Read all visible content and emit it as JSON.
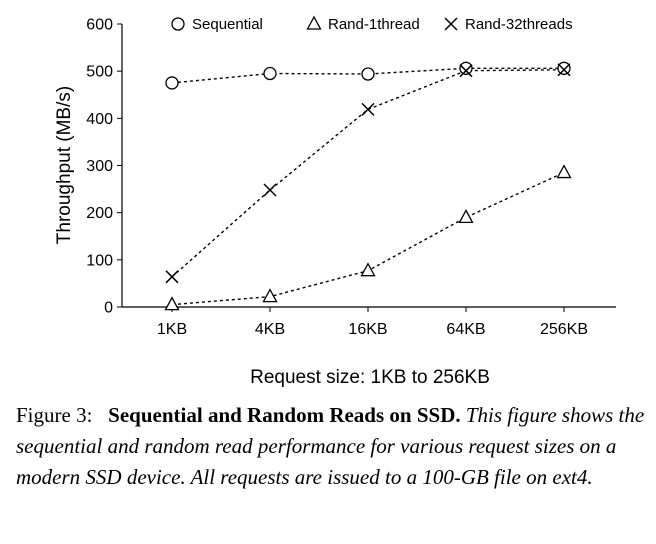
{
  "chart_data": {
    "type": "line",
    "categories": [
      "1KB",
      "4KB",
      "16KB",
      "64KB",
      "256KB"
    ],
    "series": [
      {
        "name": "Sequential",
        "marker": "circle",
        "values": [
          475,
          495,
          494,
          506,
          506
        ]
      },
      {
        "name": "Rand-1thread",
        "marker": "triangle",
        "values": [
          5,
          22,
          77,
          190,
          285
        ]
      },
      {
        "name": "Rand-32threads",
        "marker": "x",
        "values": [
          64,
          248,
          419,
          501,
          503
        ]
      }
    ],
    "xlabel": "Request size: 1KB to 256KB",
    "ylabel": "Throughput (MB/s)",
    "ylim": [
      0,
      600
    ],
    "yticks": [
      0,
      100,
      200,
      300,
      400,
      500,
      600
    ],
    "grid": false,
    "legend_position": "top"
  },
  "caption": {
    "label": "Figure 3:",
    "title": "Sequential and Random Reads on SSD.",
    "body": "This figure shows the sequential and random read performance for various request sizes on a modern SSD device. All requests are issued to a 100-GB file on ext4."
  }
}
